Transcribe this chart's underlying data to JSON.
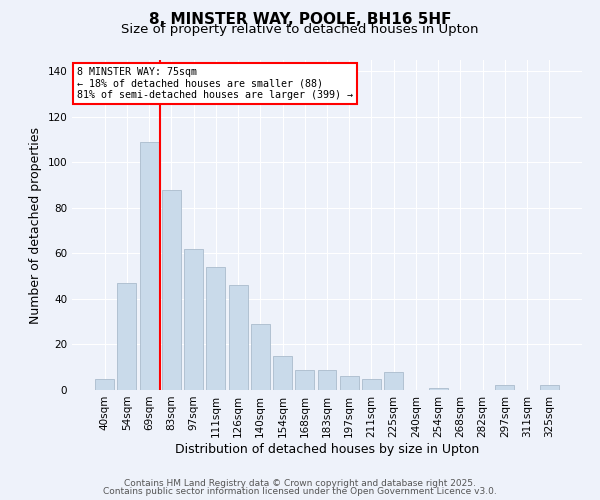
{
  "title": "8, MINSTER WAY, POOLE, BH16 5HF",
  "subtitle": "Size of property relative to detached houses in Upton",
  "xlabel": "Distribution of detached houses by size in Upton",
  "ylabel": "Number of detached properties",
  "bar_labels": [
    "40sqm",
    "54sqm",
    "69sqm",
    "83sqm",
    "97sqm",
    "111sqm",
    "126sqm",
    "140sqm",
    "154sqm",
    "168sqm",
    "183sqm",
    "197sqm",
    "211sqm",
    "225sqm",
    "240sqm",
    "254sqm",
    "268sqm",
    "282sqm",
    "297sqm",
    "311sqm",
    "325sqm"
  ],
  "bar_values": [
    5,
    47,
    109,
    88,
    62,
    54,
    46,
    29,
    15,
    9,
    9,
    6,
    5,
    8,
    0,
    1,
    0,
    0,
    2,
    0,
    2
  ],
  "bar_color": "#c9daea",
  "bar_edge_color": "#aabccc",
  "vline_x_index": 2,
  "vline_color": "red",
  "ylim": [
    0,
    145
  ],
  "yticks": [
    0,
    20,
    40,
    60,
    80,
    100,
    120,
    140
  ],
  "annotation_title": "8 MINSTER WAY: 75sqm",
  "annotation_line1": "← 18% of detached houses are smaller (88)",
  "annotation_line2": "81% of semi-detached houses are larger (399) →",
  "annotation_box_color": "white",
  "annotation_box_edge": "red",
  "footer1": "Contains HM Land Registry data © Crown copyright and database right 2025.",
  "footer2": "Contains public sector information licensed under the Open Government Licence v3.0.",
  "background_color": "#eef2fa",
  "title_fontsize": 11,
  "subtitle_fontsize": 9.5,
  "axis_label_fontsize": 9,
  "tick_fontsize": 7.5,
  "footer_fontsize": 6.5
}
